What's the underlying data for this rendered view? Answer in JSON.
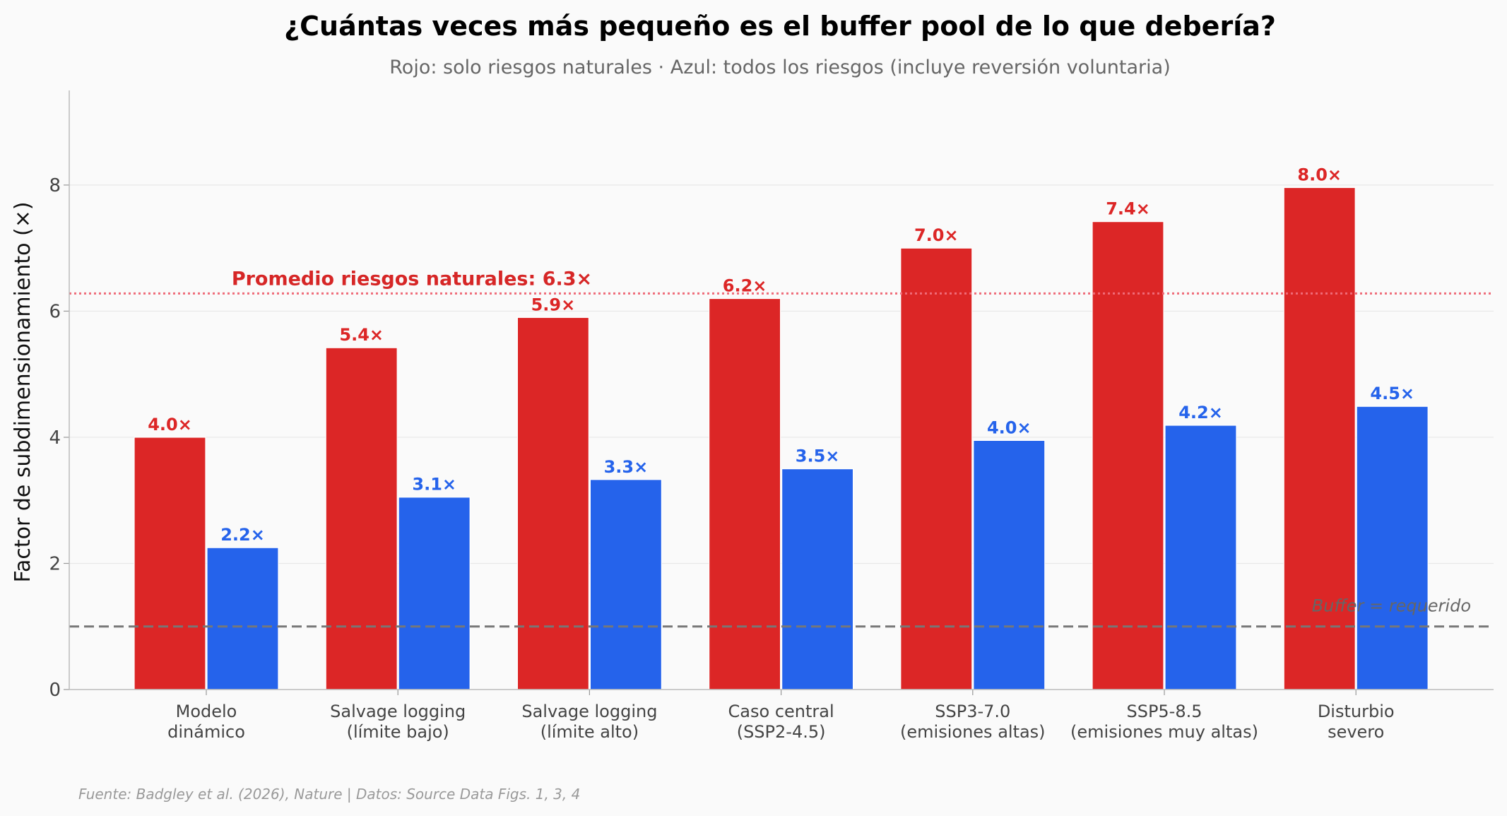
{
  "chart_data": {
    "type": "bar",
    "title": "¿Cuántas veces más pequeño es el buffer pool de lo que debería?",
    "subtitle": "Rojo: solo riesgos naturales · Azul: todos los riesgos (incluye reversión voluntaria)",
    "ylabel": "Factor de subdimensionamiento (×)",
    "xlabel": "",
    "ylim": [
      0,
      9.5
    ],
    "yticks": [
      0,
      2,
      4,
      6,
      8
    ],
    "grid": true,
    "categories": [
      [
        "Modelo",
        "dinámico"
      ],
      [
        "Salvage logging",
        "(límite bajo)"
      ],
      [
        "Salvage logging",
        "(límite alto)"
      ],
      [
        "Caso central",
        "(SSP2-4.5)"
      ],
      [
        "SSP3-7.0",
        "(emisiones altas)"
      ],
      [
        "SSP5-8.5",
        "(emisiones muy altas)"
      ],
      [
        "Disturbio",
        "severo"
      ]
    ],
    "series": [
      {
        "color": "#dc2626",
        "values": [
          4.0,
          5.42,
          5.9,
          6.2,
          7.0,
          7.42,
          7.96
        ],
        "labels": [
          "4.0×",
          "5.4×",
          "5.9×",
          "6.2×",
          "7.0×",
          "7.4×",
          "8.0×"
        ]
      },
      {
        "color": "#2563eb",
        "values": [
          2.25,
          3.05,
          3.33,
          3.5,
          3.95,
          4.19,
          4.49
        ],
        "labels": [
          "2.2×",
          "3.1×",
          "3.3×",
          "3.5×",
          "4.0×",
          "4.2×",
          "4.5×"
        ]
      }
    ],
    "reference_lines": [
      {
        "value": 1.0,
        "style": "dashed",
        "color": "#777777",
        "label": "Buffer = requerido"
      },
      {
        "value": 6.28,
        "style": "dotted",
        "color": "#ef6b78",
        "label": "Promedio riesgos naturales: 6.3×"
      }
    ],
    "source": "Fuente: Badgley et al. (2026), Nature | Datos: Source Data Figs. 1, 3, 4"
  }
}
